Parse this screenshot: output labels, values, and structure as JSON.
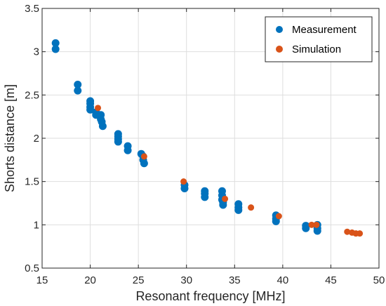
{
  "chart_data": {
    "type": "scatter",
    "xlabel": "Resonant frequency [MHz]",
    "ylabel": "Shorts distance [m]",
    "xlim": [
      15,
      50
    ],
    "ylim": [
      0.5,
      3.5
    ],
    "xticks": [
      "15",
      "20",
      "25",
      "30",
      "35",
      "40",
      "45",
      "50"
    ],
    "yticks": [
      "0.5",
      "1",
      "1.5",
      "2",
      "2.5",
      "3",
      "3.5"
    ],
    "grid": true,
    "legend_position": "top-right",
    "series": [
      {
        "name": "Measurement",
        "color": "#0072bd",
        "x": [
          16.4,
          16.4,
          18.7,
          18.7,
          20.0,
          20.0,
          20.0,
          20.0,
          20.6,
          20.6,
          21.1,
          21.1,
          21.2,
          21.3,
          22.9,
          22.9,
          22.9,
          22.9,
          23.9,
          23.9,
          25.3,
          25.5,
          25.5,
          25.6,
          29.8,
          29.8,
          31.9,
          31.9,
          31.9,
          33.7,
          33.7,
          33.7,
          33.8,
          33.8,
          35.4,
          35.4,
          35.4,
          39.3,
          39.3,
          39.3,
          42.4,
          42.4,
          43.6,
          43.6,
          43.6
        ],
        "y": [
          3.1,
          3.03,
          2.62,
          2.55,
          2.43,
          2.4,
          2.36,
          2.33,
          2.3,
          2.27,
          2.27,
          2.22,
          2.19,
          2.14,
          2.05,
          2.02,
          1.99,
          1.96,
          1.91,
          1.86,
          1.82,
          1.79,
          1.75,
          1.71,
          1.46,
          1.42,
          1.39,
          1.36,
          1.32,
          1.39,
          1.34,
          1.29,
          1.26,
          1.23,
          1.24,
          1.2,
          1.17,
          1.11,
          1.07,
          1.04,
          0.99,
          0.96,
          1.0,
          0.96,
          0.93
        ]
      },
      {
        "name": "Simulation",
        "color": "#d95319",
        "x": [
          20.8,
          25.6,
          29.7,
          34.0,
          36.7,
          39.6,
          43.0,
          43.5,
          46.7,
          47.2,
          47.6,
          48.0
        ],
        "y": [
          2.35,
          1.79,
          1.5,
          1.3,
          1.2,
          1.1,
          1.0,
          1.0,
          0.92,
          0.91,
          0.9,
          0.9
        ]
      }
    ]
  }
}
